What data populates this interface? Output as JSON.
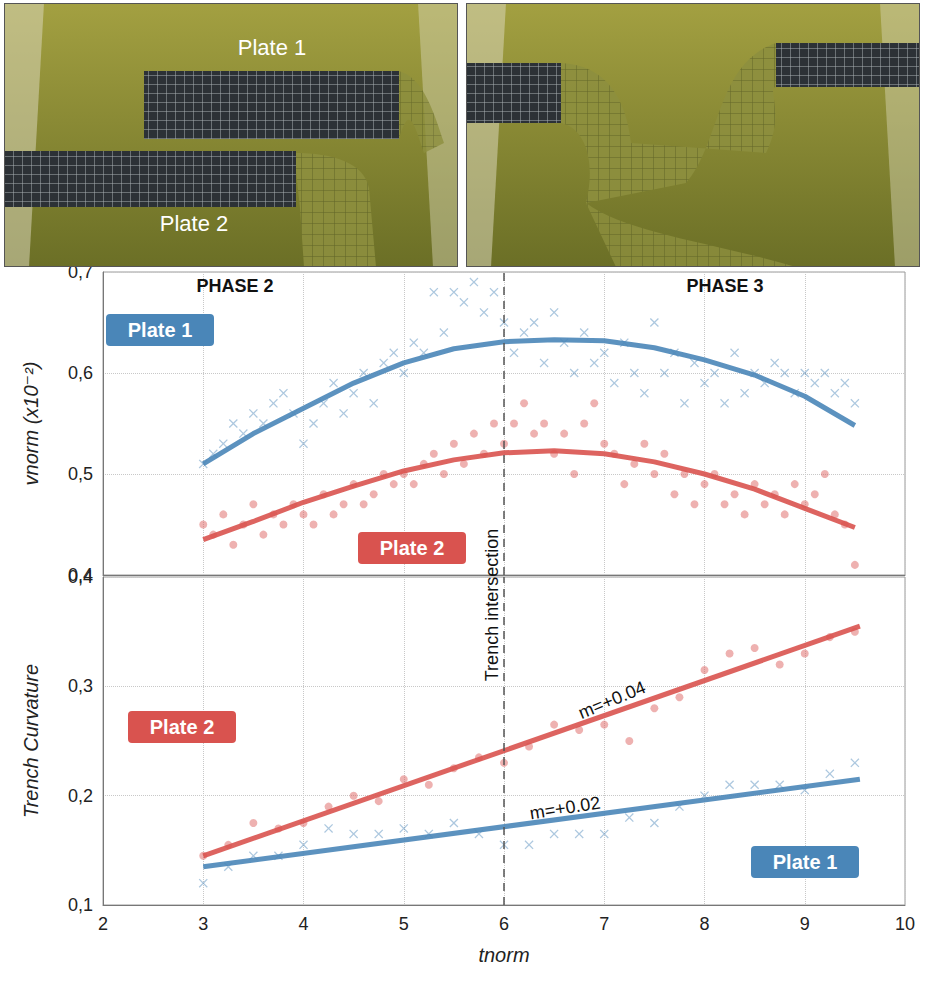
{
  "photos": [
    {
      "labels": [
        "Plate 1",
        "Plate 2"
      ]
    },
    {
      "labels": []
    }
  ],
  "chart_data": [
    {
      "type": "scatter",
      "ylabel": "vnorm (x10⁻²)",
      "xlim": [
        2,
        10
      ],
      "xticks": [
        2,
        3,
        4,
        5,
        6,
        7,
        8,
        9,
        10
      ],
      "ylim": [
        0.4,
        0.7
      ],
      "yticks": [
        {
          "value": 0.4,
          "label": "0,4"
        },
        {
          "value": 0.5,
          "label": "0,5"
        },
        {
          "value": 0.6,
          "label": "0,6"
        },
        {
          "value": 0.7,
          "label": "0,7"
        }
      ],
      "grid": true,
      "tick_labels": "y",
      "annotations": [
        "PHASE 2",
        "PHASE 3"
      ],
      "vline": {
        "x": 6
      },
      "series": [
        {
          "name": "Plate 1",
          "color": "#4a86b8",
          "marker": "cross",
          "x": [
            3.0,
            3.1,
            3.2,
            3.3,
            3.4,
            3.5,
            3.6,
            3.7,
            3.8,
            3.9,
            4.0,
            4.1,
            4.2,
            4.3,
            4.4,
            4.5,
            4.6,
            4.7,
            4.8,
            4.9,
            5.0,
            5.1,
            5.2,
            5.3,
            5.4,
            5.5,
            5.6,
            5.7,
            5.8,
            5.9,
            6.0,
            6.1,
            6.2,
            6.3,
            6.4,
            6.5,
            6.6,
            6.7,
            6.8,
            6.9,
            7.0,
            7.1,
            7.2,
            7.3,
            7.4,
            7.5,
            7.6,
            7.7,
            7.8,
            7.9,
            8.0,
            8.1,
            8.2,
            8.3,
            8.4,
            8.5,
            8.6,
            8.7,
            8.8,
            8.9,
            9.0,
            9.1,
            9.2,
            9.3,
            9.4,
            9.5
          ],
          "values": [
            0.51,
            0.52,
            0.53,
            0.55,
            0.54,
            0.56,
            0.55,
            0.57,
            0.58,
            0.56,
            0.53,
            0.55,
            0.57,
            0.59,
            0.56,
            0.58,
            0.6,
            0.57,
            0.61,
            0.62,
            0.6,
            0.63,
            0.62,
            0.68,
            0.64,
            0.68,
            0.67,
            0.69,
            0.66,
            0.68,
            0.65,
            0.62,
            0.64,
            0.65,
            0.61,
            0.66,
            0.63,
            0.6,
            0.64,
            0.61,
            0.62,
            0.59,
            0.63,
            0.6,
            0.58,
            0.65,
            0.6,
            0.62,
            0.57,
            0.61,
            0.59,
            0.6,
            0.57,
            0.62,
            0.58,
            0.6,
            0.59,
            0.61,
            0.6,
            0.58,
            0.6,
            0.59,
            0.6,
            0.58,
            0.59,
            0.57
          ],
          "fit_x": [
            3.0,
            3.5,
            4.0,
            4.5,
            5.0,
            5.5,
            6.0,
            6.5,
            7.0,
            7.5,
            8.0,
            8.5,
            9.0,
            9.5
          ],
          "fit_values": [
            0.51,
            0.54,
            0.565,
            0.59,
            0.61,
            0.624,
            0.631,
            0.633,
            0.632,
            0.625,
            0.613,
            0.598,
            0.577,
            0.548
          ]
        },
        {
          "name": "Plate 2",
          "color": "#d9534f",
          "marker": "circle",
          "x": [
            3.0,
            3.1,
            3.2,
            3.3,
            3.4,
            3.5,
            3.6,
            3.7,
            3.8,
            3.9,
            4.0,
            4.1,
            4.2,
            4.3,
            4.4,
            4.5,
            4.6,
            4.7,
            4.8,
            4.9,
            5.0,
            5.1,
            5.2,
            5.3,
            5.4,
            5.5,
            5.6,
            5.7,
            5.8,
            5.9,
            6.0,
            6.1,
            6.2,
            6.3,
            6.4,
            6.5,
            6.6,
            6.7,
            6.8,
            6.9,
            7.0,
            7.1,
            7.2,
            7.3,
            7.4,
            7.5,
            7.6,
            7.7,
            7.8,
            7.9,
            8.0,
            8.1,
            8.2,
            8.3,
            8.4,
            8.5,
            8.6,
            8.7,
            8.8,
            8.9,
            9.0,
            9.1,
            9.2,
            9.3,
            9.4,
            9.5
          ],
          "values": [
            0.45,
            0.44,
            0.46,
            0.43,
            0.45,
            0.47,
            0.44,
            0.46,
            0.45,
            0.47,
            0.46,
            0.45,
            0.48,
            0.46,
            0.47,
            0.49,
            0.47,
            0.48,
            0.5,
            0.49,
            0.5,
            0.49,
            0.51,
            0.52,
            0.5,
            0.53,
            0.51,
            0.54,
            0.52,
            0.55,
            0.53,
            0.55,
            0.57,
            0.54,
            0.55,
            0.52,
            0.54,
            0.5,
            0.55,
            0.57,
            0.53,
            0.52,
            0.49,
            0.51,
            0.53,
            0.5,
            0.52,
            0.48,
            0.5,
            0.47,
            0.49,
            0.5,
            0.47,
            0.48,
            0.46,
            0.49,
            0.47,
            0.48,
            0.46,
            0.49,
            0.47,
            0.48,
            0.5,
            0.46,
            0.45,
            0.41
          ],
          "fit_x": [
            3.0,
            3.5,
            4.0,
            4.5,
            5.0,
            5.5,
            6.0,
            6.5,
            7.0,
            7.5,
            8.0,
            8.5,
            9.0,
            9.5
          ],
          "fit_values": [
            0.435,
            0.453,
            0.472,
            0.488,
            0.503,
            0.514,
            0.521,
            0.523,
            0.52,
            0.512,
            0.5,
            0.485,
            0.466,
            0.447
          ]
        }
      ]
    },
    {
      "type": "scatter",
      "xlabel": "tnorm",
      "ylabel": "Trench Curvature",
      "xlim": [
        2,
        10
      ],
      "xticks": [
        2,
        3,
        4,
        5,
        6,
        7,
        8,
        9,
        10
      ],
      "ylim": [
        0.1,
        0.4
      ],
      "yticks": [
        {
          "value": 0.1,
          "label": "0,1"
        },
        {
          "value": 0.2,
          "label": "0,2"
        },
        {
          "value": 0.3,
          "label": "0,3"
        },
        {
          "value": 0.4,
          "label": "0,4"
        }
      ],
      "grid": true,
      "vline": {
        "x": 6,
        "label": "Trench intersection"
      },
      "series": [
        {
          "name": "Plate 1",
          "color": "#4a86b8",
          "marker": "cross",
          "fit_label": "m=+0.02",
          "x": [
            3.0,
            3.25,
            3.5,
            3.75,
            4.0,
            4.25,
            4.5,
            4.75,
            5.0,
            5.25,
            5.5,
            5.75,
            6.0,
            6.25,
            6.5,
            6.75,
            7.0,
            7.25,
            7.5,
            7.75,
            8.0,
            8.25,
            8.5,
            8.75,
            9.0,
            9.25,
            9.5
          ],
          "values": [
            0.12,
            0.135,
            0.145,
            0.145,
            0.155,
            0.17,
            0.165,
            0.165,
            0.17,
            0.165,
            0.175,
            0.165,
            0.155,
            0.155,
            0.165,
            0.165,
            0.165,
            0.18,
            0.175,
            0.19,
            0.2,
            0.21,
            0.21,
            0.21,
            0.205,
            0.22,
            0.23
          ],
          "fit_x": [
            3.0,
            9.55
          ],
          "fit_values": [
            0.135,
            0.215
          ]
        },
        {
          "name": "Plate 2",
          "color": "#d9534f",
          "marker": "circle",
          "fit_label": "m=+0.04",
          "x": [
            3.0,
            3.25,
            3.5,
            3.75,
            4.0,
            4.25,
            4.5,
            4.75,
            5.0,
            5.25,
            5.5,
            5.75,
            6.0,
            6.25,
            6.5,
            6.75,
            7.0,
            7.25,
            7.5,
            7.75,
            8.0,
            8.25,
            8.5,
            8.75,
            9.0,
            9.25,
            9.5
          ],
          "values": [
            0.145,
            0.155,
            0.175,
            0.17,
            0.175,
            0.19,
            0.2,
            0.195,
            0.215,
            0.21,
            0.225,
            0.235,
            0.23,
            0.245,
            0.265,
            0.26,
            0.265,
            0.25,
            0.28,
            0.29,
            0.315,
            0.33,
            0.335,
            0.32,
            0.33,
            0.345,
            0.35
          ],
          "fit_x": [
            3.0,
            9.55
          ],
          "fit_values": [
            0.145,
            0.355
          ]
        }
      ]
    }
  ]
}
